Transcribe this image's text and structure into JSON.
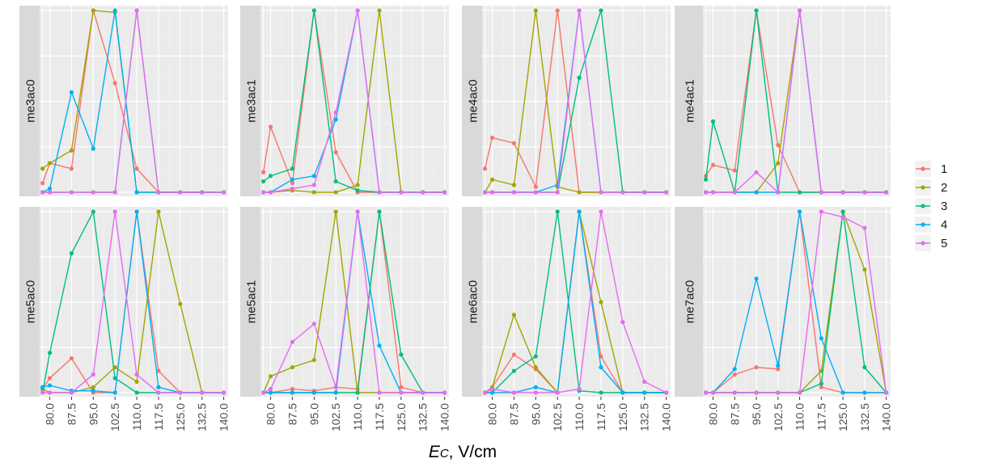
{
  "figure": {
    "x_axis_title_main": "E",
    "x_axis_title_sub": "C",
    "x_axis_title_rest": ", V/cm"
  },
  "legend": {
    "items": [
      {
        "label": "1",
        "color": "#F8766D"
      },
      {
        "label": "2",
        "color": "#A3A500"
      },
      {
        "label": "3",
        "color": "#00BF7D"
      },
      {
        "label": "4",
        "color": "#00B0F6"
      },
      {
        "label": "5",
        "color": "#E76BF3"
      }
    ]
  },
  "chart_data": {
    "type": "line",
    "facets_layout": "2 rows x 4 columns",
    "x": [
      77.5,
      80.0,
      87.5,
      95.0,
      102.5,
      110.0,
      117.5,
      125.0,
      132.5,
      140.0
    ],
    "x_ticks": [
      "80.0",
      "87.5",
      "95.0",
      "102.5",
      "110.0",
      "117.5",
      "125.0",
      "132.5",
      "140.0"
    ],
    "xlim": [
      76.5,
      141.5
    ],
    "y_axis_labels_shown": false,
    "grid": true,
    "legend_position": "right",
    "panels": [
      {
        "strip": "me3ac0",
        "series": [
          {
            "name": "1",
            "values": [
              0.05,
              0.16,
              0.13,
              1.0,
              0.6,
              0.13,
              0.0,
              0.0,
              0.0,
              0.0
            ]
          },
          {
            "name": "2",
            "values": [
              0.13,
              0.16,
              0.23,
              1.0,
              0.99,
              0.0,
              0.0,
              0.0,
              0.0,
              0.0
            ]
          },
          {
            "name": "3",
            "values": [
              0.0,
              0.0,
              0.0,
              0.0,
              0.0,
              1.0,
              0.0,
              0.0,
              0.0,
              0.0
            ]
          },
          {
            "name": "4",
            "values": [
              0.0,
              0.02,
              0.55,
              0.24,
              1.0,
              0.0,
              0.0,
              0.0,
              0.0,
              0.0
            ]
          },
          {
            "name": "5",
            "values": [
              0.0,
              0.0,
              0.0,
              0.0,
              0.0,
              1.0,
              0.0,
              0.0,
              0.0,
              0.0
            ]
          }
        ]
      },
      {
        "strip": "me3ac1",
        "series": [
          {
            "name": "1",
            "values": [
              0.11,
              0.36,
              0.05,
              1.0,
              0.22,
              0.0,
              0.0,
              0.0,
              0.0,
              0.0
            ]
          },
          {
            "name": "2",
            "values": [
              0.0,
              0.0,
              0.01,
              0.0,
              0.0,
              0.04,
              1.0,
              0.0,
              0.0,
              0.0
            ]
          },
          {
            "name": "3",
            "values": [
              0.06,
              0.09,
              0.13,
              1.0,
              0.06,
              0.01,
              0.0,
              0.0,
              0.0,
              0.0
            ]
          },
          {
            "name": "4",
            "values": [
              0.0,
              0.0,
              0.07,
              0.09,
              0.4,
              1.0,
              0.0,
              0.0,
              0.0,
              0.0
            ]
          },
          {
            "name": "5",
            "values": [
              0.0,
              0.0,
              0.02,
              0.04,
              0.44,
              1.0,
              0.0,
              0.0,
              0.0,
              0.0
            ]
          }
        ]
      },
      {
        "strip": "me4ac0",
        "series": [
          {
            "name": "1",
            "values": [
              0.13,
              0.3,
              0.27,
              0.03,
              1.0,
              0.0,
              0.0,
              0.0,
              0.0,
              0.0
            ]
          },
          {
            "name": "2",
            "values": [
              0.0,
              0.07,
              0.04,
              1.0,
              0.03,
              0.0,
              0.0,
              0.0,
              0.0,
              0.0
            ]
          },
          {
            "name": "3",
            "values": [
              0.0,
              0.0,
              0.0,
              0.0,
              0.0,
              0.63,
              1.0,
              0.0,
              0.0,
              0.0
            ]
          },
          {
            "name": "4",
            "values": [
              0.0,
              0.0,
              0.0,
              0.0,
              0.04,
              1.0,
              0.0,
              0.0,
              0.0,
              0.0
            ]
          },
          {
            "name": "5",
            "values": [
              0.0,
              0.0,
              0.0,
              0.0,
              0.0,
              1.0,
              0.0,
              0.0,
              0.0,
              0.0
            ]
          }
        ]
      },
      {
        "strip": "me4ac1",
        "series": [
          {
            "name": "1",
            "values": [
              0.09,
              0.15,
              0.12,
              1.0,
              0.26,
              0.0,
              0.0,
              0.0,
              0.0,
              0.0
            ]
          },
          {
            "name": "2",
            "values": [
              0.0,
              0.0,
              0.0,
              0.0,
              0.16,
              1.0,
              0.0,
              0.0,
              0.0,
              0.0
            ]
          },
          {
            "name": "3",
            "values": [
              0.07,
              0.39,
              0.0,
              1.0,
              0.0,
              0.0,
              0.0,
              0.0,
              0.0,
              0.0
            ]
          },
          {
            "name": "4",
            "values": [
              0.0,
              0.0,
              0.0,
              0.0,
              0.0,
              1.0,
              0.0,
              0.0,
              0.0,
              0.0
            ]
          },
          {
            "name": "5",
            "values": [
              0.0,
              0.0,
              0.0,
              0.11,
              0.0,
              1.0,
              0.0,
              0.0,
              0.0,
              0.0
            ]
          }
        ]
      },
      {
        "strip": "me5ac0",
        "series": [
          {
            "name": "1",
            "values": [
              0.02,
              0.08,
              0.19,
              0.0,
              0.0,
              1.0,
              0.12,
              0.0,
              0.0,
              0.0
            ]
          },
          {
            "name": "2",
            "values": [
              0.02,
              0.0,
              0.0,
              0.03,
              0.14,
              0.06,
              1.0,
              0.49,
              0.0,
              0.0
            ]
          },
          {
            "name": "3",
            "values": [
              0.0,
              0.22,
              0.77,
              1.0,
              0.08,
              0.0,
              0.0,
              0.0,
              0.0,
              0.0
            ]
          },
          {
            "name": "4",
            "values": [
              0.03,
              0.04,
              0.01,
              0.01,
              0.0,
              1.0,
              0.03,
              0.0,
              0.0,
              0.0
            ]
          },
          {
            "name": "5",
            "values": [
              0.0,
              0.0,
              0.0,
              0.1,
              1.0,
              0.1,
              0.0,
              0.0,
              0.0,
              0.0
            ]
          }
        ]
      },
      {
        "strip": "me5ac1",
        "series": [
          {
            "name": "1",
            "values": [
              0.0,
              0.0,
              0.02,
              0.01,
              0.03,
              0.02,
              1.0,
              0.03,
              0.0,
              0.0
            ]
          },
          {
            "name": "2",
            "values": [
              0.0,
              0.09,
              0.14,
              0.18,
              1.0,
              0.0,
              0.0,
              0.0,
              0.0,
              0.0
            ]
          },
          {
            "name": "3",
            "values": [
              0.0,
              0.0,
              0.0,
              0.0,
              0.0,
              0.0,
              1.0,
              0.21,
              0.0,
              0.0
            ]
          },
          {
            "name": "4",
            "values": [
              0.0,
              0.0,
              0.0,
              0.0,
              0.0,
              1.0,
              0.26,
              0.0,
              0.0,
              0.0
            ]
          },
          {
            "name": "5",
            "values": [
              0.0,
              0.02,
              0.28,
              0.38,
              0.03,
              1.0,
              0.0,
              0.0,
              0.0,
              0.0
            ]
          }
        ]
      },
      {
        "strip": "me6ac0",
        "series": [
          {
            "name": "1",
            "values": [
              0.0,
              0.03,
              0.21,
              0.13,
              0.0,
              1.0,
              0.2,
              0.0,
              0.0,
              0.0
            ]
          },
          {
            "name": "2",
            "values": [
              0.0,
              0.03,
              0.43,
              0.14,
              0.0,
              1.0,
              0.5,
              0.0,
              0.0,
              0.0
            ]
          },
          {
            "name": "3",
            "values": [
              0.0,
              0.0,
              0.12,
              0.2,
              1.0,
              0.01,
              0.0,
              0.0,
              0.0,
              0.0
            ]
          },
          {
            "name": "4",
            "values": [
              0.0,
              0.0,
              0.0,
              0.03,
              0.0,
              1.0,
              0.14,
              0.0,
              0.0,
              0.0
            ]
          },
          {
            "name": "5",
            "values": [
              0.0,
              0.02,
              0.0,
              0.0,
              0.0,
              0.02,
              1.0,
              0.39,
              0.06,
              0.0
            ]
          }
        ]
      },
      {
        "strip": "me7ac0",
        "series": [
          {
            "name": "1",
            "values": [
              0.0,
              0.0,
              0.1,
              0.14,
              0.13,
              1.0,
              0.03,
              0.0,
              0.0,
              0.0
            ]
          },
          {
            "name": "2",
            "values": [
              0.0,
              0.0,
              0.0,
              0.0,
              0.0,
              0.0,
              0.12,
              1.0,
              0.68,
              0.0
            ]
          },
          {
            "name": "3",
            "values": [
              0.0,
              0.0,
              0.0,
              0.0,
              0.0,
              0.0,
              0.05,
              1.0,
              0.14,
              0.0
            ]
          },
          {
            "name": "4",
            "values": [
              0.0,
              0.0,
              0.13,
              0.63,
              0.15,
              1.0,
              0.3,
              0.0,
              0.0,
              0.0
            ]
          },
          {
            "name": "5",
            "values": [
              0.0,
              0.0,
              0.0,
              0.0,
              0.0,
              0.0,
              1.0,
              0.97,
              0.91,
              0.0
            ]
          }
        ]
      }
    ]
  }
}
